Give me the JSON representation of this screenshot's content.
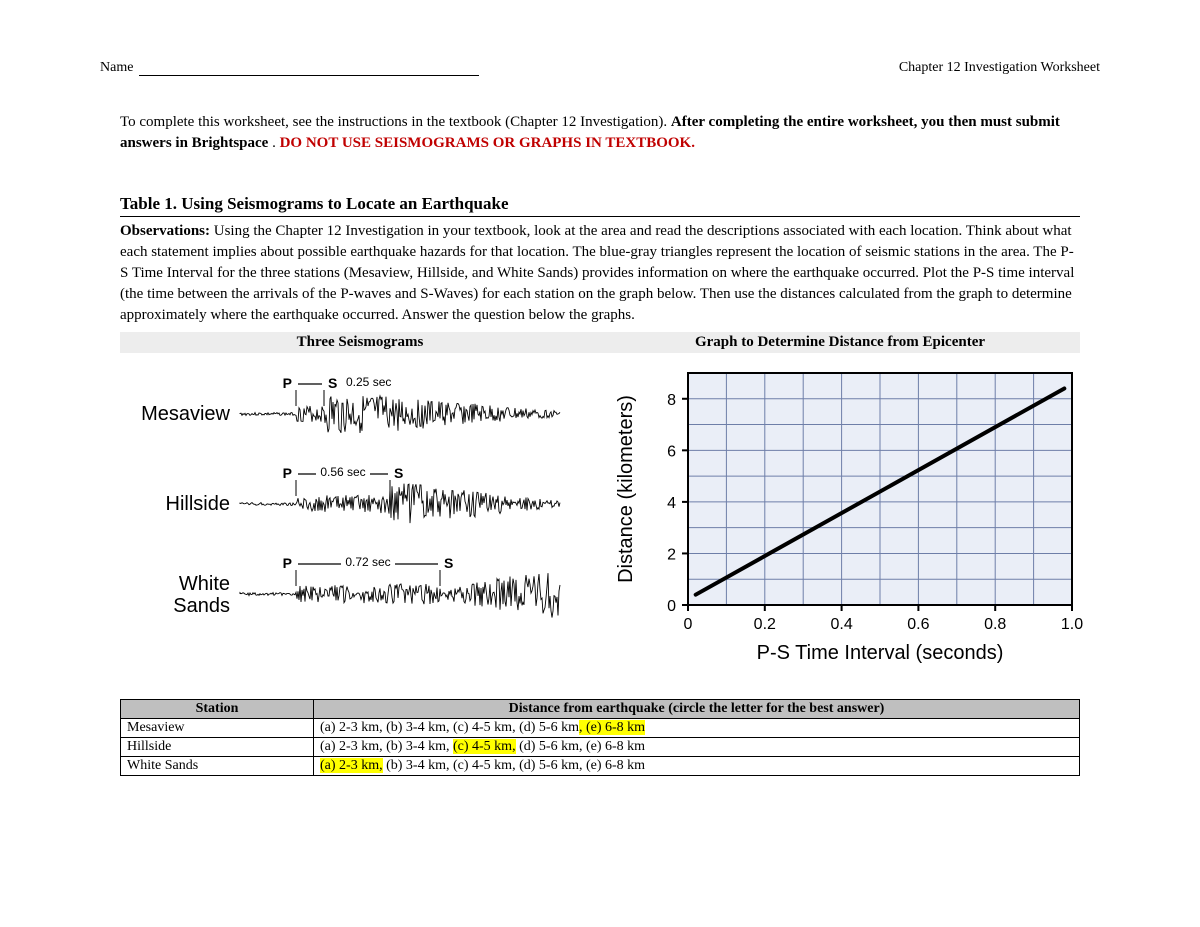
{
  "header": {
    "name_label": "Name",
    "right": "Chapter 12 Investigation Worksheet"
  },
  "intro": {
    "line1": "To complete this worksheet, see the instructions in the textbook (Chapter 12 Investigation). ",
    "bold": "After completing the entire worksheet, you then must submit answers in Brightspace",
    "period": ". ",
    "red": "DO NOT USE SEISMOGRAMS OR GRAPHS IN TEXTBOOK."
  },
  "table1_title": "Table 1. Using Seismograms to Locate an Earthquake",
  "observations": {
    "label": "Observations: ",
    "text": "Using the Chapter 12 Investigation in your textbook, look at the area and read the descriptions associated with each location. Think about what each statement implies about possible earthquake hazards for that location.  The blue-gray triangles represent the location of seismic stations in the area. The P-S Time Interval for the three stations (Mesaview, Hillside, and White Sands) provides information on where the earthquake occurred. Plot the P-S time interval (the time between the arrivals of the P-waves and S-Waves) for each station on the graph below. Then use the distances calculated from the graph to determine approximately where the earthquake occurred. Answer the question below the graphs."
  },
  "fig_headers": {
    "left": "Three Seismograms",
    "right": "Graph to Determine Distance from Epicenter"
  },
  "seismograms": {
    "stations": [
      {
        "name": "Mesaview",
        "ps_label": "0.25 sec",
        "p_x": 56,
        "s_x": 84,
        "label_style": "arrow"
      },
      {
        "name": "Hillside",
        "ps_label": "0.56 sec",
        "p_x": 56,
        "s_x": 150,
        "label_style": "dash"
      },
      {
        "name": "White Sands",
        "ps_label": "0.72 sec",
        "p_x": 56,
        "s_x": 200,
        "label_style": "long"
      }
    ],
    "font": "Arial",
    "label_fontsize": 20,
    "ps_fontsize": 12,
    "stroke": "#000000"
  },
  "distance_chart": {
    "type": "line",
    "xlabel": "P-S Time Interval (seconds)",
    "ylabel": "Distance (kilometers)",
    "xlim": [
      0,
      1.0
    ],
    "ylim": [
      0,
      9
    ],
    "xticks": [
      0,
      0.2,
      0.4,
      0.6,
      0.8,
      1.0
    ],
    "yticks": [
      0,
      2,
      4,
      6,
      8
    ],
    "x_minor_step": 0.1,
    "y_minor_step": 1,
    "grid_color": "#6e7ea8",
    "plot_bg": "#eaeef7",
    "line_color": "#000000",
    "line_width": 4,
    "line_points": [
      [
        0.02,
        0.4
      ],
      [
        0.98,
        8.4
      ]
    ],
    "tick_fontsize": 16,
    "label_fontsize": 20
  },
  "answer_table": {
    "col_headers": [
      "Station",
      "Distance from earthquake (circle the letter for the best answer)"
    ],
    "rows": [
      {
        "station": "Mesaview",
        "options": [
          {
            "t": "(a) 2-3 km, ",
            "hl": false
          },
          {
            "t": "(b) 3-4 km, ",
            "hl": false
          },
          {
            "t": "(c) 4-5 km, ",
            "hl": false
          },
          {
            "t": "(d) 5-6 km",
            "hl": false
          },
          {
            "t": ", (e) 6-8 km",
            "hl": true
          }
        ]
      },
      {
        "station": "Hillside",
        "options": [
          {
            "t": "(a) 2-3 km, ",
            "hl": false
          },
          {
            "t": "(b) 3-4 km, ",
            "hl": false
          },
          {
            "t": "(c) 4-5 km,",
            "hl": true
          },
          {
            "t": " (d) 5-6 km, ",
            "hl": false
          },
          {
            "t": "(e) 6-8 km",
            "hl": false
          }
        ]
      },
      {
        "station": "White Sands",
        "options": [
          {
            "t": "(a) 2-3 km,",
            "hl": true
          },
          {
            "t": " (b) 3-4 km, ",
            "hl": false
          },
          {
            "t": "(c) 4-5 km, ",
            "hl": false
          },
          {
            "t": "(d) 5-6 km, ",
            "hl": false
          },
          {
            "t": "(e) 6-8 km",
            "hl": false
          }
        ]
      }
    ]
  }
}
